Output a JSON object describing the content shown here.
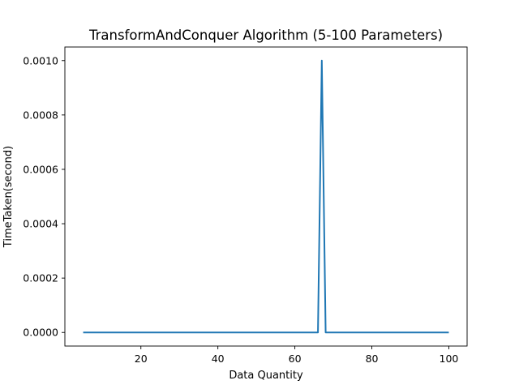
{
  "chart_data": {
    "type": "line",
    "title": "TransformAndConquer Algorithm (5-100 Parameters)",
    "xlabel": "Data Quantity",
    "ylabel": "TimeTaken(second)",
    "xlim": [
      0.25,
      104.75
    ],
    "ylim": [
      -5e-05,
      0.00105
    ],
    "x_ticks": [
      20,
      40,
      60,
      80,
      100
    ],
    "x_tick_labels": [
      "20",
      "40",
      "60",
      "80",
      "100"
    ],
    "y_ticks": [
      0.0,
      0.0002,
      0.0004,
      0.0006,
      0.0008,
      0.001
    ],
    "y_tick_labels": [
      "0.0000",
      "0.0002",
      "0.0004",
      "0.0006",
      "0.0008",
      "0.0010"
    ],
    "grid": false,
    "series": [
      {
        "color": "#1f77b4",
        "x": [
          5,
          66,
          67,
          68,
          100
        ],
        "y": [
          0.0,
          0.0,
          0.001,
          0.0,
          0.0
        ]
      }
    ]
  }
}
